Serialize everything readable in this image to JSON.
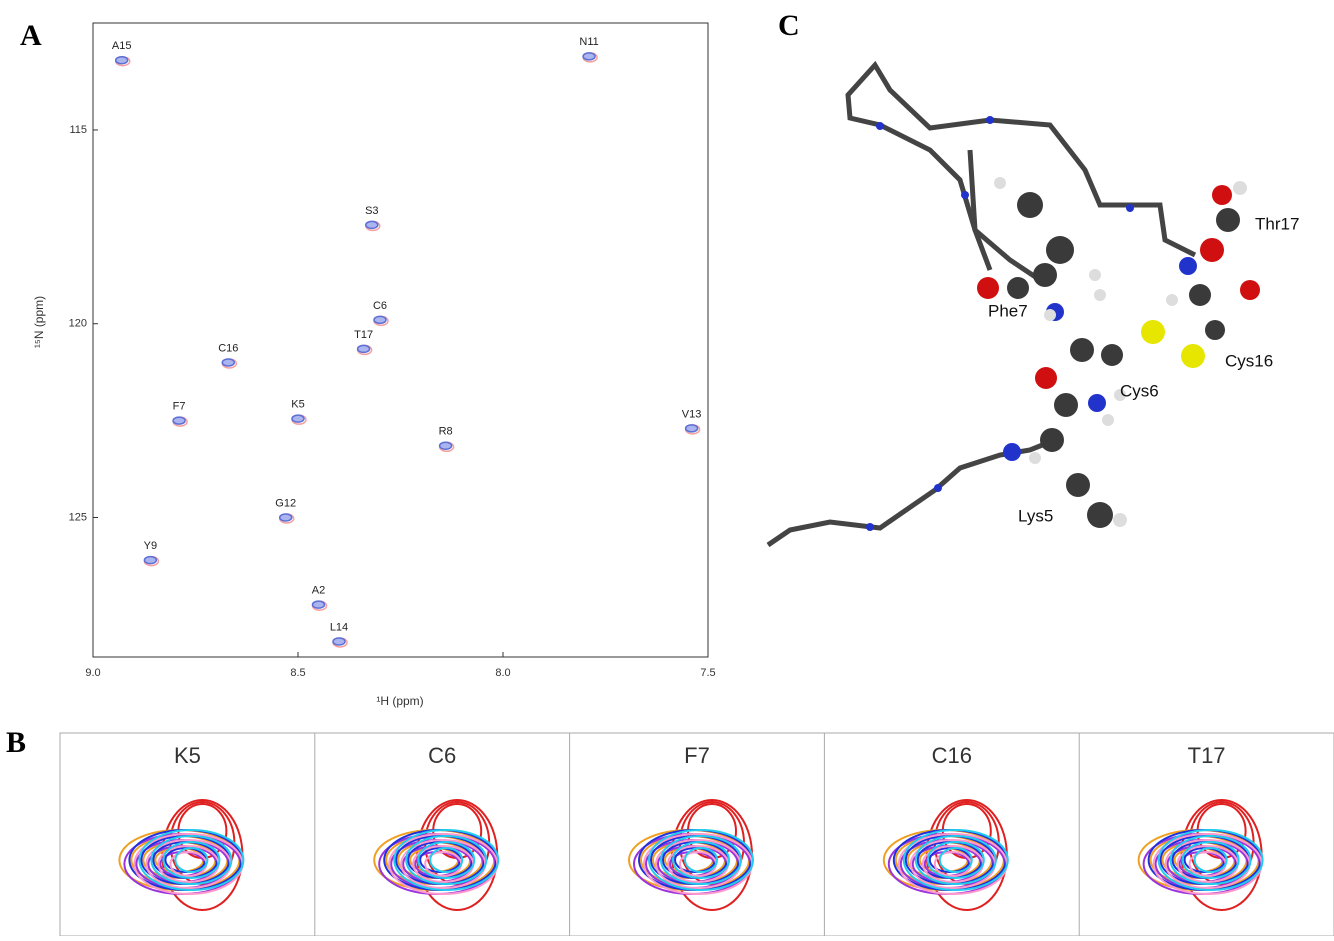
{
  "panel_labels": [
    "A",
    "B",
    "C"
  ],
  "chart_data": {
    "type": "scatter",
    "x_label": "¹H (ppm)",
    "y_label": "¹⁵N (ppm)",
    "categories": [
      "A15",
      "N11",
      "S3",
      "C6",
      "T17",
      "C16",
      "F7",
      "K5",
      "V13",
      "R8",
      "G12",
      "Y9",
      "A2",
      "L14"
    ],
    "x": [
      8.93,
      7.79,
      8.32,
      8.3,
      8.34,
      8.67,
      8.79,
      8.5,
      7.54,
      8.14,
      8.53,
      8.86,
      8.45,
      8.4
    ],
    "values": [
      113.2,
      113.1,
      117.45,
      119.9,
      120.65,
      121.0,
      122.5,
      122.45,
      122.7,
      123.15,
      125.0,
      126.1,
      127.25,
      128.2
    ],
    "color": "#5b6fd6",
    "xlim": [
      9.0,
      7.5
    ],
    "xticks": [
      {
        "value": 9,
        "label": "9.0"
      },
      8.5,
      {
        "value": 8,
        "label": "8.0"
      },
      7.5
    ],
    "ylim": [
      112.24,
      128.6
    ],
    "yticks": [
      115,
      120,
      125
    ]
  },
  "contour_panels": [
    "K5",
    "C6",
    "F7",
    "C16",
    "T17"
  ],
  "structure_labels": [
    "Thr17",
    "Phe7",
    "Cys16",
    "Cys6",
    "Lys5"
  ]
}
